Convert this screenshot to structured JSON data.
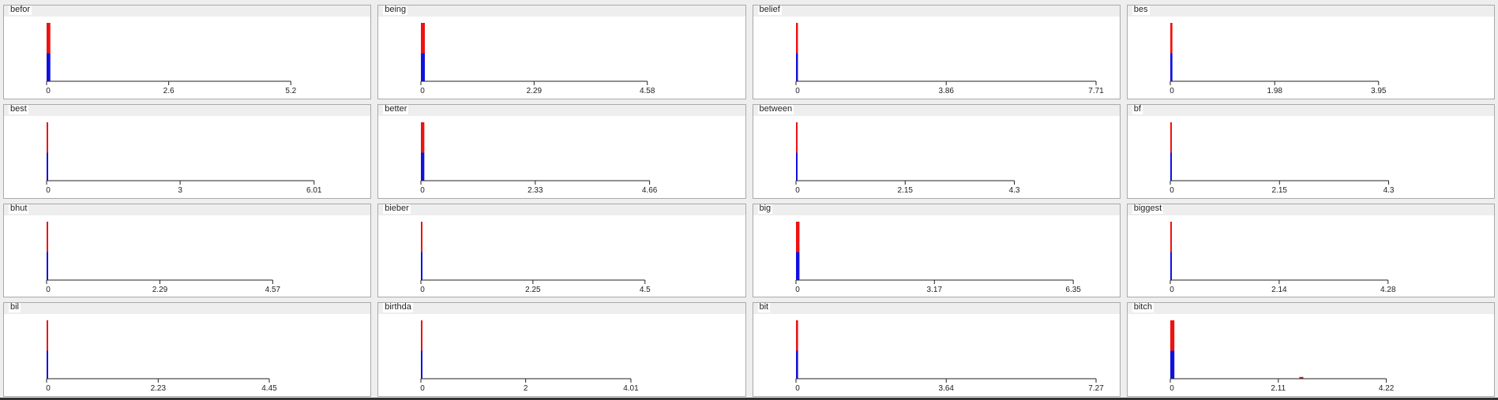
{
  "colors": {
    "top": "#ee1111",
    "bottom": "#1111dd",
    "axis": "#222222"
  },
  "chart_data": [
    {
      "type": "bar",
      "title": "befor",
      "xticks": [
        "0",
        "2.6",
        "5.2"
      ],
      "xlim": [
        0,
        5.2
      ],
      "bars": [
        {
          "x": 0.0,
          "w": 0.08,
          "bottom": 0.48,
          "top": 0.52
        }
      ]
    },
    {
      "type": "bar",
      "title": "being",
      "xticks": [
        "0",
        "2.29",
        "4.58"
      ],
      "xlim": [
        0,
        4.58
      ],
      "bars": [
        {
          "x": 0.0,
          "w": 0.08,
          "bottom": 0.48,
          "top": 0.52
        }
      ]
    },
    {
      "type": "bar",
      "title": "belief",
      "xticks": [
        "0",
        "3.86",
        "7.71"
      ],
      "xlim": [
        0,
        7.71
      ],
      "bars": [
        {
          "x": 0.0,
          "w": 0.05,
          "bottom": 0.48,
          "top": 0.52
        }
      ]
    },
    {
      "type": "bar",
      "title": "bes",
      "xticks": [
        "0",
        "1.98",
        "3.95"
      ],
      "xlim": [
        0,
        3.95
      ],
      "bars": [
        {
          "x": 0.0,
          "w": 0.04,
          "bottom": 0.48,
          "top": 0.52
        }
      ]
    },
    {
      "type": "bar",
      "title": "best",
      "xticks": [
        "0",
        "3",
        "6.01"
      ],
      "xlim": [
        0,
        6.01
      ],
      "bars": [
        {
          "x": 0.0,
          "w": 0.03,
          "bottom": 0.48,
          "top": 0.52
        }
      ]
    },
    {
      "type": "bar",
      "title": "better",
      "xticks": [
        "0",
        "2.33",
        "4.66"
      ],
      "xlim": [
        0,
        4.66
      ],
      "bars": [
        {
          "x": 0.0,
          "w": 0.07,
          "bottom": 0.48,
          "top": 0.52
        }
      ]
    },
    {
      "type": "bar",
      "title": "between",
      "xticks": [
        "0",
        "2.15",
        "4.3"
      ],
      "xlim": [
        0,
        4.3
      ],
      "bars": [
        {
          "x": 0.0,
          "w": 0.02,
          "bottom": 0.48,
          "top": 0.52
        }
      ]
    },
    {
      "type": "bar",
      "title": "bf",
      "xticks": [
        "0",
        "2.15",
        "4.3"
      ],
      "xlim": [
        0,
        4.3
      ],
      "bars": [
        {
          "x": 0.0,
          "w": 0.02,
          "bottom": 0.48,
          "top": 0.52
        }
      ]
    },
    {
      "type": "bar",
      "title": "bhut",
      "xticks": [
        "0",
        "2.29",
        "4.57"
      ],
      "xlim": [
        0,
        4.57
      ],
      "bars": [
        {
          "x": 0.0,
          "w": 0.01,
          "bottom": 0.48,
          "top": 0.52
        }
      ]
    },
    {
      "type": "bar",
      "title": "bieber",
      "xticks": [
        "0",
        "2.25",
        "4.5"
      ],
      "xlim": [
        0,
        4.5
      ],
      "bars": [
        {
          "x": 0.0,
          "w": 0.03,
          "bottom": 0.48,
          "top": 0.52
        }
      ]
    },
    {
      "type": "bar",
      "title": "big",
      "xticks": [
        "0",
        "3.17",
        "6.35"
      ],
      "xlim": [
        0,
        6.35
      ],
      "bars": [
        {
          "x": 0.0,
          "w": 0.08,
          "bottom": 0.48,
          "top": 0.52
        }
      ]
    },
    {
      "type": "bar",
      "title": "biggest",
      "xticks": [
        "0",
        "2.14",
        "4.28"
      ],
      "xlim": [
        0,
        4.28
      ],
      "bars": [
        {
          "x": 0.0,
          "w": 0.02,
          "bottom": 0.48,
          "top": 0.52
        }
      ]
    },
    {
      "type": "bar",
      "title": "bil",
      "xticks": [
        "0",
        "2.23",
        "4.45"
      ],
      "xlim": [
        0,
        4.45
      ],
      "bars": [
        {
          "x": 0.0,
          "w": 0.03,
          "bottom": 0.48,
          "top": 0.52
        }
      ]
    },
    {
      "type": "bar",
      "title": "birthda",
      "xticks": [
        "0",
        "2",
        "4.01"
      ],
      "xlim": [
        0,
        4.01
      ],
      "bars": [
        {
          "x": 0.0,
          "w": 0.03,
          "bottom": 0.48,
          "top": 0.52
        }
      ]
    },
    {
      "type": "bar",
      "title": "bit",
      "xticks": [
        "0",
        "3.64",
        "7.27"
      ],
      "xlim": [
        0,
        7.27
      ],
      "bars": [
        {
          "x": 0.0,
          "w": 0.05,
          "bottom": 0.48,
          "top": 0.52
        }
      ]
    },
    {
      "type": "bar",
      "title": "bitch",
      "xticks": [
        "0",
        "2.11",
        "4.22"
      ],
      "xlim": [
        0,
        4.22
      ],
      "bars": [
        {
          "x": 0.0,
          "w": 0.08,
          "bottom": 0.48,
          "top": 0.52
        },
        {
          "x": 2.52,
          "w": 0.08,
          "bottom": 0.0,
          "top": 0.03
        }
      ]
    }
  ]
}
